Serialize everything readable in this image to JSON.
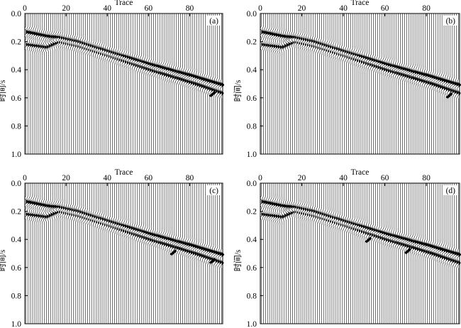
{
  "figure": {
    "caption": ""
  },
  "chart_data": [
    {
      "type": "seismic-wiggle",
      "panel_label": "(a)",
      "title": "",
      "xlabel": "Trace",
      "ylabel": "时间/s",
      "xlim": [
        0,
        96
      ],
      "ylim": [
        0.0,
        1.0
      ],
      "xticks": [
        0,
        20,
        40,
        60,
        80
      ],
      "yticks": [
        0.0,
        0.2,
        0.4,
        0.6,
        0.8,
        1.0
      ],
      "xtick_labels": [
        "0",
        "20",
        "40",
        "60",
        "80"
      ],
      "ytick_labels": [
        "0.0",
        "0.2",
        "0.4",
        "0.6",
        "0.8",
        "1.0"
      ],
      "trace_count": 96,
      "events": [
        {
          "name": "upper-event",
          "trace": [
            0,
            10,
            16,
            25,
            40,
            60,
            80,
            96
          ],
          "time": [
            0.13,
            0.16,
            0.17,
            0.2,
            0.27,
            0.36,
            0.44,
            0.51
          ]
        },
        {
          "name": "lower-event",
          "trace": [
            0,
            10,
            16,
            25,
            40,
            60,
            80,
            96
          ],
          "time": [
            0.22,
            0.24,
            0.2,
            0.23,
            0.3,
            0.4,
            0.49,
            0.57
          ]
        }
      ],
      "marks": [
        {
          "trace": 91,
          "time": 0.57
        }
      ]
    },
    {
      "type": "seismic-wiggle",
      "panel_label": "(b)",
      "title": "",
      "xlabel": "Trace",
      "ylabel": "时间/s",
      "xlim": [
        0,
        96
      ],
      "ylim": [
        0.0,
        1.0
      ],
      "xticks": [
        0,
        20,
        40,
        60,
        80
      ],
      "yticks": [
        0.0,
        0.2,
        0.4,
        0.6,
        0.8,
        1.0
      ],
      "xtick_labels": [
        "0",
        "20",
        "40",
        "60",
        "80"
      ],
      "ytick_labels": [
        "0.0",
        "0.2",
        "0.4",
        "0.6",
        "0.8",
        "1.0"
      ],
      "trace_count": 96,
      "events": [
        {
          "name": "upper-event",
          "trace": [
            0,
            10,
            16,
            25,
            40,
            60,
            80,
            96
          ],
          "time": [
            0.13,
            0.16,
            0.17,
            0.2,
            0.27,
            0.36,
            0.44,
            0.51
          ]
        },
        {
          "name": "lower-event",
          "trace": [
            0,
            10,
            16,
            25,
            40,
            60,
            80,
            96
          ],
          "time": [
            0.22,
            0.24,
            0.2,
            0.23,
            0.3,
            0.4,
            0.49,
            0.57
          ]
        }
      ],
      "marks": [
        {
          "trace": 91,
          "time": 0.58
        }
      ]
    },
    {
      "type": "seismic-wiggle",
      "panel_label": "(c)",
      "title": "",
      "xlabel": "Trace",
      "ylabel": "时间/s",
      "xlim": [
        0,
        96
      ],
      "ylim": [
        0.0,
        1.0
      ],
      "xticks": [
        0,
        20,
        40,
        60,
        80
      ],
      "yticks": [
        0.0,
        0.2,
        0.4,
        0.6,
        0.8,
        1.0
      ],
      "xtick_labels": [
        "0",
        "20",
        "40",
        "60",
        "80"
      ],
      "ytick_labels": [
        "0.0",
        "0.2",
        "0.4",
        "0.6",
        "0.8",
        "1.0"
      ],
      "trace_count": 96,
      "events": [
        {
          "name": "upper-event",
          "trace": [
            0,
            10,
            16,
            25,
            40,
            60,
            80,
            96
          ],
          "time": [
            0.13,
            0.16,
            0.17,
            0.2,
            0.27,
            0.36,
            0.44,
            0.51
          ]
        },
        {
          "name": "lower-event",
          "trace": [
            0,
            10,
            16,
            25,
            40,
            60,
            80,
            96
          ],
          "time": [
            0.22,
            0.24,
            0.2,
            0.23,
            0.3,
            0.4,
            0.49,
            0.57
          ]
        }
      ],
      "marks": [
        {
          "trace": 72,
          "time": 0.49
        },
        {
          "trace": 91,
          "time": 0.55
        }
      ]
    },
    {
      "type": "seismic-wiggle",
      "panel_label": "(d)",
      "title": "",
      "xlabel": "Trace",
      "ylabel": "时间/s",
      "xlim": [
        0,
        96
      ],
      "ylim": [
        0.0,
        1.0
      ],
      "xticks": [
        0,
        20,
        40,
        60,
        80
      ],
      "yticks": [
        0.0,
        0.2,
        0.4,
        0.6,
        0.8,
        1.0
      ],
      "xtick_labels": [
        "0",
        "20",
        "40",
        "60",
        "80"
      ],
      "ytick_labels": [
        "0.0",
        "0.2",
        "0.4",
        "0.6",
        "0.8",
        "1.0"
      ],
      "trace_count": 96,
      "events": [
        {
          "name": "upper-event",
          "trace": [
            0,
            10,
            16,
            25,
            40,
            60,
            80,
            96
          ],
          "time": [
            0.13,
            0.16,
            0.17,
            0.2,
            0.27,
            0.36,
            0.44,
            0.51
          ]
        },
        {
          "name": "lower-event",
          "trace": [
            0,
            10,
            16,
            25,
            40,
            60,
            80,
            96
          ],
          "time": [
            0.22,
            0.24,
            0.2,
            0.23,
            0.3,
            0.4,
            0.49,
            0.57
          ]
        }
      ],
      "marks": [
        {
          "trace": 52,
          "time": 0.4
        },
        {
          "trace": 71,
          "time": 0.48
        }
      ]
    }
  ]
}
